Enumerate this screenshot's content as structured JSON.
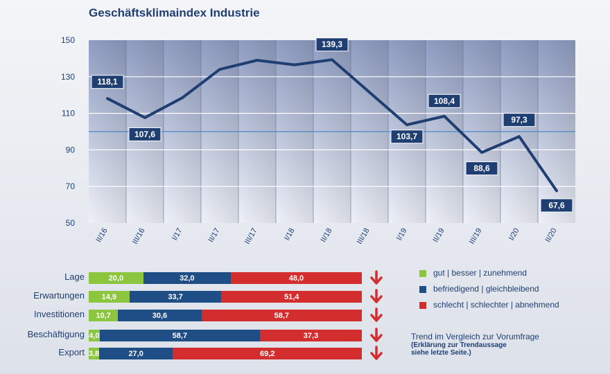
{
  "chart_data": [
    {
      "type": "line",
      "title": "Geschäftsklimaindex Industrie",
      "categories": [
        "II/16",
        "III/16",
        "I/17",
        "II/17",
        "III/17",
        "I/18",
        "II/18",
        "III/18",
        "I/19",
        "II/19",
        "III/19",
        "I/20",
        "II/20"
      ],
      "series": [
        {
          "values": [
            118.1,
            107.6,
            118.5,
            134.0,
            139.0,
            136.5,
            139.3,
            121.5,
            103.7,
            108.4,
            88.6,
            97.3,
            67.6
          ]
        }
      ],
      "data_labels": [
        {
          "index": 0,
          "text": "118,1"
        },
        {
          "index": 1,
          "text": "107,6"
        },
        {
          "index": 6,
          "text": "139,3"
        },
        {
          "index": 8,
          "text": "103,7"
        },
        {
          "index": 9,
          "text": "108,4"
        },
        {
          "index": 10,
          "text": "88,6"
        },
        {
          "index": 11,
          "text": "97,3"
        },
        {
          "index": 12,
          "text": "67,6"
        }
      ],
      "ylim": [
        50,
        150
      ],
      "yticks": [
        "50",
        "70",
        "90",
        "110",
        "130",
        "150"
      ],
      "reference_line": 100,
      "grid": true,
      "colors": {
        "line": "#1f3f73",
        "label_bg": "#1f3f73",
        "reference": "#4a86c8"
      }
    },
    {
      "type": "bar",
      "orientation": "horizontal",
      "stacked": true,
      "categories": [
        "Lage",
        "Erwartungen",
        "Investitionen",
        "Beschäftigung",
        "Export"
      ],
      "series": [
        {
          "name": "gut | besser | zunehmend",
          "values": [
            20.0,
            14.9,
            10.7,
            4.0,
            3.8
          ],
          "labels": [
            "20,0",
            "14,9",
            "10,7",
            "4,0",
            "3,8"
          ],
          "color": "#8cc63f"
        },
        {
          "name": "befriedigend | gleichbleibend",
          "values": [
            32.0,
            33.7,
            30.6,
            58.7,
            27.0
          ],
          "labels": [
            "32,0",
            "33,7",
            "30,6",
            "58,7",
            "27,0"
          ],
          "color": "#1f4e86"
        },
        {
          "name": "schlecht | schlechter | abnehmend",
          "values": [
            48.0,
            51.4,
            58.7,
            37.3,
            69.2
          ],
          "labels": [
            "48,0",
            "51,4",
            "58,7",
            "37,3",
            "69,2"
          ],
          "color": "#d42d2d"
        }
      ],
      "trend": [
        "down",
        "down",
        "down",
        "down",
        "down"
      ],
      "trend_icon": "down-arrow-icon",
      "trend_color": "#d42d2d",
      "legend": "right"
    }
  ],
  "trend_note": {
    "main": "Trend im Vergleich zur Vorumfrage",
    "sub1": "(Erklärung zur Trendaussage",
    "sub2": "siehe letzte Seite.)"
  }
}
